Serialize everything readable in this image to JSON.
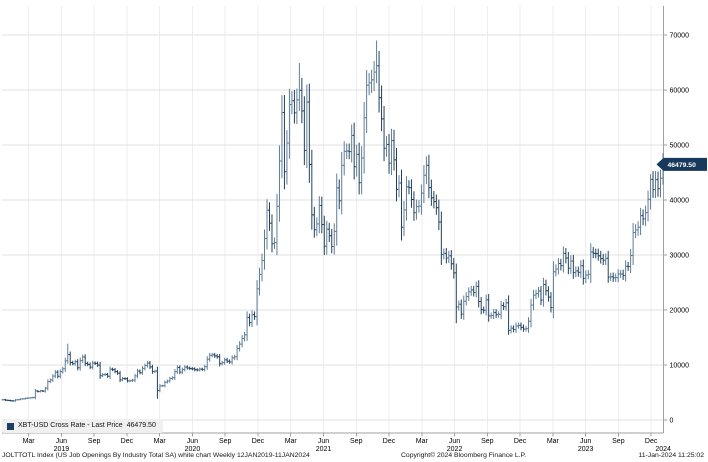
{
  "legend": {
    "label": "XBT-USD Cross Rate - Last Price",
    "last_price": "46479.50",
    "swatch_color": "#1c3f63"
  },
  "price_badge": {
    "text": "46479.50",
    "bg": "#17395c",
    "fg": "#ffffff"
  },
  "footer": {
    "description": "JOLTTOTL Index (US Job Openings By Industry Total SA) white chart  Weekly 12JAN2019-11JAN2024",
    "copyright": "Copyright© 2024 Bloomberg Finance L.P.",
    "timestamp": "11-Jan-2024 11:25:02"
  },
  "chart_data": {
    "type": "ohlc-bar",
    "title": "XBT-USD Cross Rate",
    "frequency": "Weekly",
    "date_range_start": "12JAN2019",
    "date_range_end": "11JAN2024",
    "last_price": 46479.5,
    "ylim": [
      0,
      70000
    ],
    "y_ticks": [
      0,
      10000,
      20000,
      30000,
      40000,
      50000,
      60000,
      70000
    ],
    "month_ticks": [
      {
        "m": 2,
        "label": "Mar"
      },
      {
        "m": 5,
        "label": "Jun"
      },
      {
        "m": 8,
        "label": "Sep"
      },
      {
        "m": 11,
        "label": "Dec"
      },
      {
        "m": 14,
        "label": "Mar"
      },
      {
        "m": 17,
        "label": "Jun"
      },
      {
        "m": 20,
        "label": "Sep"
      },
      {
        "m": 23,
        "label": "Dec"
      },
      {
        "m": 26,
        "label": "Mar"
      },
      {
        "m": 29,
        "label": "Jun"
      },
      {
        "m": 32,
        "label": "Sep"
      },
      {
        "m": 35,
        "label": "Dec"
      },
      {
        "m": 38,
        "label": "Mar"
      },
      {
        "m": 41,
        "label": "Jun"
      },
      {
        "m": 44,
        "label": "Sep"
      },
      {
        "m": 47,
        "label": "Dec"
      },
      {
        "m": 50,
        "label": "Mar"
      },
      {
        "m": 53,
        "label": "Jun"
      },
      {
        "m": 56,
        "label": "Sep"
      },
      {
        "m": 59,
        "label": "Dec"
      }
    ],
    "year_ticks": [
      {
        "m": 5,
        "label": "2019"
      },
      {
        "m": 17,
        "label": "2020"
      },
      {
        "m": 29,
        "label": "2021"
      },
      {
        "m": 41,
        "label": "2022"
      },
      {
        "m": 53,
        "label": "2023"
      },
      {
        "m": 60.1,
        "label": "2024"
      }
    ],
    "closes": [
      3690,
      3600,
      3560,
      3500,
      3470,
      3660,
      3710,
      3820,
      3855,
      3940,
      4000,
      4030,
      4105,
      5280,
      5170,
      5300,
      5250,
      5790,
      6980,
      7290,
      7990,
      8700,
      7950,
      8800,
      9320,
      10760,
      11900,
      10450,
      10250,
      10600,
      9500,
      10800,
      11450,
      10300,
      10100,
      9600,
      10350,
      10300,
      9980,
      8050,
      8250,
      8300,
      7950,
      9250,
      9150,
      8800,
      8500,
      7300,
      7550,
      7500,
      7100,
      7150,
      7250,
      8020,
      8900,
      8600,
      9390,
      9900,
      10340,
      9650,
      8800,
      8900,
      5360,
      6200,
      6240,
      6870,
      7100,
      7550,
      7700,
      8790,
      9550,
      8720,
      9180,
      9620,
      9450,
      9350,
      9300,
      9140,
      9100,
      9250,
      9200,
      9700,
      11050,
      11750,
      11850,
      11650,
      11500,
      10250,
      10440,
      10940,
      10700,
      10550,
      11300,
      11500,
      12990,
      13800,
      14830,
      15480,
      18650,
      17700,
      19150,
      18800,
      23850,
      26470,
      28990,
      33000,
      38150,
      35800,
      32050,
      32250,
      38850,
      47100,
      55900,
      45140,
      50350,
      57350,
      58050,
      55850,
      58200,
      59950,
      56200,
      49000,
      57800,
      46450,
      37300,
      34600,
      35650,
      39000,
      35550,
      31600,
      34700,
      33500,
      31550,
      34300,
      42200,
      39850,
      46300,
      48850,
      48900,
      48800,
      51750,
      46050,
      48300,
      43150,
      47650,
      54950,
      60850,
      61300,
      61850,
      63250,
      64400,
      58600,
      54750,
      49400,
      50100,
      46700,
      50800,
      47300,
      41900,
      43100,
      35050,
      38200,
      42400,
      42250,
      40100,
      37700,
      38800,
      38900,
      41250,
      44500,
      46300,
      42250,
      40400,
      39700,
      38600,
      36000,
      30100,
      30300,
      29450,
      29850,
      28400,
      26750,
      20550,
      21050,
      19250,
      21600,
      22450,
      23300,
      23650,
      23180,
      24300,
      21550,
      20050,
      19950,
      21850,
      18930,
      19000,
      19550,
      19150,
      19200,
      20800,
      20600,
      21300,
      16300,
      16700,
      16450,
      17100,
      17200,
      16850,
      16550,
      16600,
      17950,
      20900,
      22700,
      23000,
      23450,
      21800,
      24650,
      23500,
      22350,
      20450,
      26950,
      27450,
      28450,
      28050,
      30300,
      29450,
      27600,
      28900,
      26800,
      27100,
      26850,
      28050,
      25750,
      26350,
      26500,
      30550,
      30300,
      30250,
      29850,
      29350,
      29050,
      29400,
      26000,
      26050,
      25850,
      25900,
      26550,
      26550,
      26250,
      27950,
      27900,
      29900,
      34100,
      34550,
      35050,
      37150,
      36550,
      37700,
      40150,
      43750,
      41900,
      43700,
      42050,
      43950,
      46479.5
    ],
    "wick_overrides": [
      {
        "i": 26,
        "high": 13880
      },
      {
        "i": 62,
        "low": 3850
      },
      {
        "i": 119,
        "high": 64900
      },
      {
        "i": 150,
        "high": 69000
      },
      {
        "i": 182,
        "low": 17600
      },
      {
        "i": 203,
        "low": 15480
      },
      {
        "i": 220,
        "low": 19550
      },
      {
        "i": 243,
        "low": 24950
      },
      {
        "i": 260,
        "high": 44700
      },
      {
        "i": 265,
        "high": 48550,
        "low": 42800
      }
    ],
    "colors": {
      "bar_up": "#5f7d98",
      "bar_down": "#21415f",
      "grid_v": "#ededed",
      "grid_h": "#e2e2e2",
      "axis": "#a0a0a0",
      "text": "#000000"
    }
  }
}
